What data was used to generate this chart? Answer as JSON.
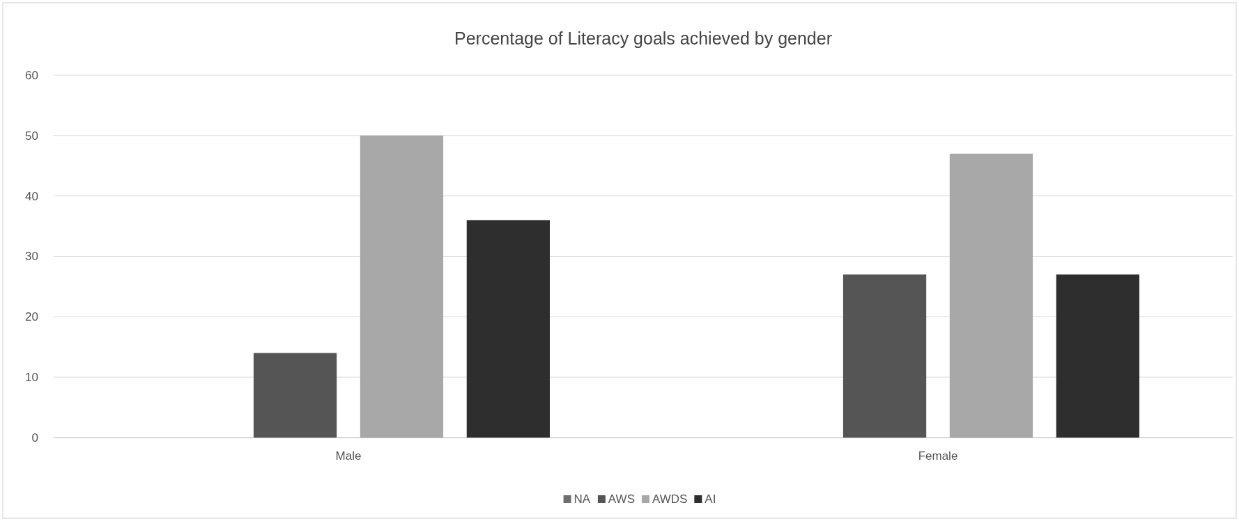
{
  "chart_data": {
    "type": "bar",
    "title": "Percentage of Literacy goals achieved by gender",
    "categories": [
      "Male",
      "Female"
    ],
    "series": [
      {
        "name": "NA",
        "color": "#6e6e6e",
        "values": [
          0,
          0
        ]
      },
      {
        "name": "AWS",
        "color": "#555555",
        "values": [
          14,
          27
        ]
      },
      {
        "name": "AWDS",
        "color": "#a8a8a8",
        "values": [
          50,
          47
        ]
      },
      {
        "name": "AI",
        "color": "#2e2e2e",
        "values": [
          36,
          27
        ]
      }
    ],
    "ylim": [
      0,
      60
    ],
    "yticks": [
      0,
      10,
      20,
      30,
      40,
      50,
      60
    ],
    "grid": "y",
    "legend": "bottom"
  }
}
